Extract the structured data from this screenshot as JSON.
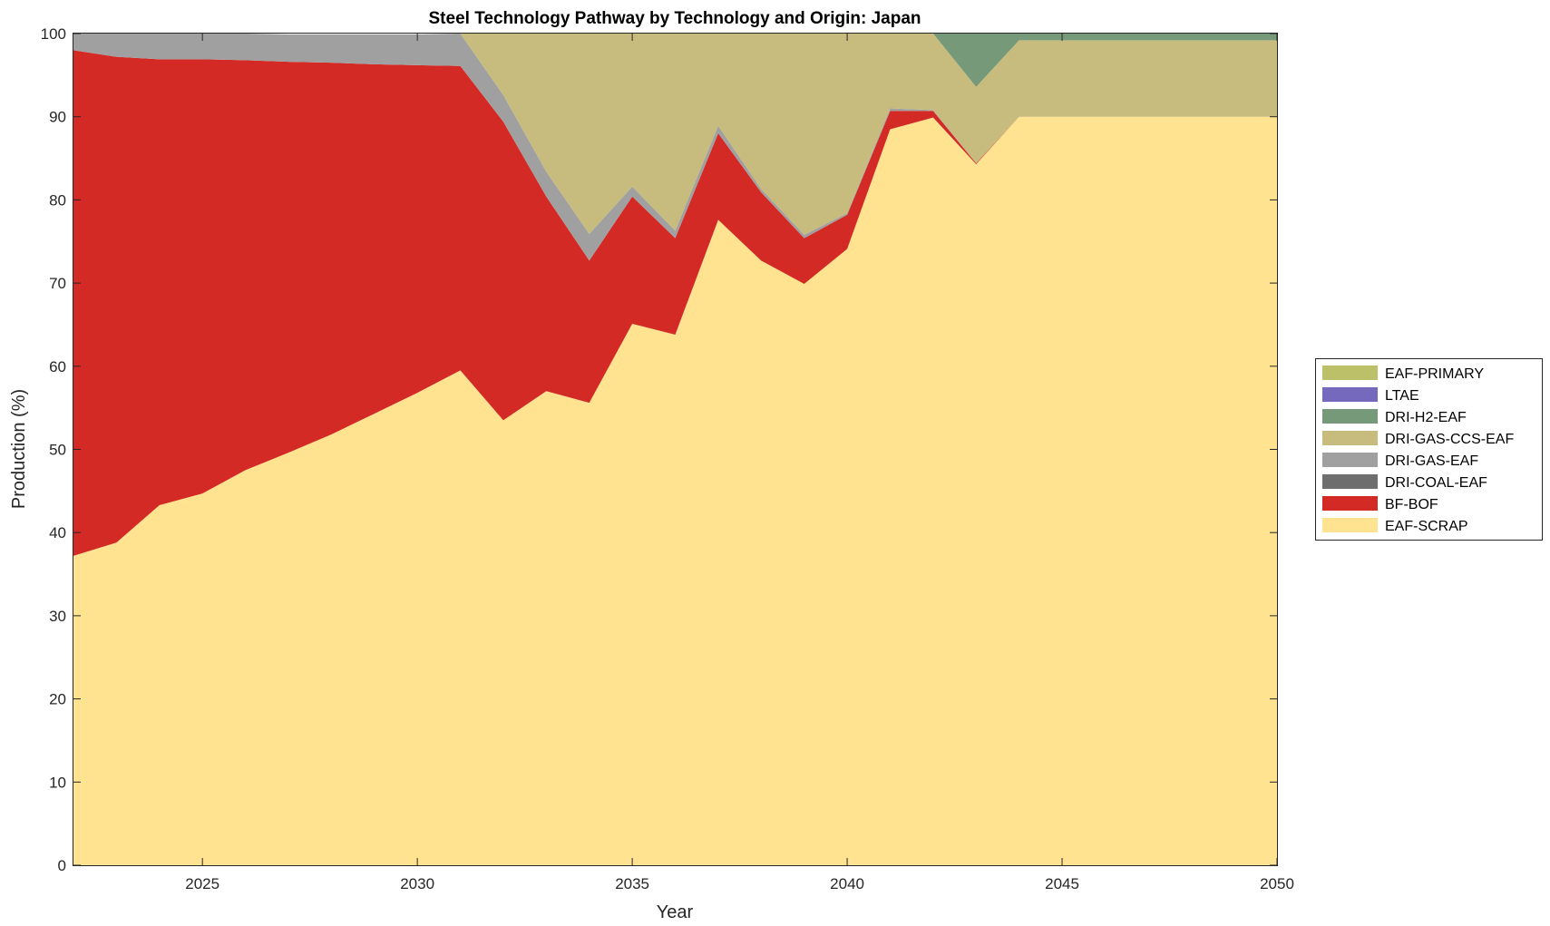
{
  "chart_data": {
    "type": "area",
    "stacked": true,
    "title": "Steel Technology Pathway by Technology and Origin: Japan",
    "xlabel": "Year",
    "ylabel": "Production (%)",
    "xlim": [
      2022,
      2050
    ],
    "ylim": [
      0,
      100
    ],
    "xticks": [
      2025,
      2030,
      2035,
      2040,
      2045,
      2050
    ],
    "yticks": [
      0,
      10,
      20,
      30,
      40,
      50,
      60,
      70,
      80,
      90,
      100
    ],
    "grid": false,
    "legend_position": "right",
    "x": [
      2022,
      2023,
      2024,
      2025,
      2026,
      2027,
      2028,
      2029,
      2030,
      2031,
      2032,
      2033,
      2034,
      2035,
      2036,
      2037,
      2038,
      2039,
      2040,
      2041,
      2042,
      2043,
      2044,
      2045,
      2046,
      2047,
      2048,
      2049,
      2050
    ],
    "series": [
      {
        "name": "EAF-SCRAP",
        "color": "#ffe391",
        "values": [
          37.2,
          38.8,
          43.3,
          44.7,
          47.5,
          49.6,
          51.8,
          54.3,
          56.8,
          59.5,
          53.5,
          57.0,
          55.6,
          65.1,
          63.8,
          77.6,
          72.7,
          69.9,
          74.1,
          88.5,
          89.9,
          84.3,
          90.0,
          90.0,
          90.0,
          90.0,
          90.0,
          90.0,
          90.0
        ]
      },
      {
        "name": "BF-BOF",
        "color": "#d42a25",
        "values": [
          60.8,
          58.4,
          53.6,
          52.2,
          49.3,
          47.0,
          44.7,
          42.0,
          39.4,
          36.6,
          35.9,
          23.4,
          17.1,
          15.3,
          11.6,
          10.4,
          8.2,
          5.5,
          4.1,
          2.2,
          0.8,
          0.1,
          0,
          0,
          0,
          0,
          0,
          0,
          0
        ]
      },
      {
        "name": "DRI-COAL-EAF",
        "color": "#6e6e6e",
        "values": [
          0,
          0,
          0,
          0,
          0,
          0,
          0,
          0,
          0,
          0,
          0,
          0,
          0,
          0,
          0,
          0,
          0,
          0,
          0,
          0,
          0,
          0,
          0,
          0,
          0,
          0,
          0,
          0,
          0
        ]
      },
      {
        "name": "DRI-GAS-EAF",
        "color": "#a0a0a0",
        "values": [
          2.0,
          2.8,
          3.1,
          3.1,
          3.2,
          3.3,
          3.4,
          3.6,
          3.7,
          3.9,
          3.2,
          3.0,
          3.2,
          1.2,
          0.9,
          0.9,
          0.4,
          0.4,
          0.2,
          0.3,
          0.1,
          0,
          0,
          0,
          0,
          0,
          0,
          0,
          0
        ]
      },
      {
        "name": "DRI-GAS-CCS-EAF",
        "color": "#c7bc7d",
        "values": [
          0,
          0,
          0,
          0,
          0,
          0,
          0,
          0,
          0,
          0,
          7.4,
          16.6,
          24.1,
          18.4,
          23.7,
          11.1,
          18.7,
          24.2,
          21.6,
          9.0,
          9.2,
          9.2,
          9.2,
          9.2,
          9.2,
          9.2,
          9.2,
          9.2,
          9.2
        ]
      },
      {
        "name": "DRI-H2-EAF",
        "color": "#76997a",
        "values": [
          0,
          0,
          0,
          0,
          0,
          0,
          0,
          0,
          0,
          0,
          0,
          0,
          0,
          0,
          0,
          0,
          0,
          0,
          0,
          0,
          0,
          6.4,
          0.8,
          0.8,
          0.8,
          0.8,
          0.8,
          0.8,
          0.8
        ]
      },
      {
        "name": "LTAE",
        "color": "#7569bd",
        "values": [
          0,
          0,
          0,
          0,
          0,
          0,
          0,
          0,
          0,
          0,
          0,
          0,
          0,
          0,
          0,
          0,
          0,
          0,
          0,
          0,
          0,
          0,
          0,
          0,
          0,
          0,
          0,
          0,
          0
        ]
      },
      {
        "name": "EAF-PRIMARY",
        "color": "#bcc169",
        "values": [
          0,
          0,
          0,
          0,
          0,
          0,
          0,
          0,
          0,
          0,
          0,
          0,
          0,
          0,
          0,
          0,
          0,
          0,
          0,
          0,
          0,
          0,
          0,
          0,
          0,
          0,
          0,
          0,
          0
        ]
      }
    ]
  }
}
